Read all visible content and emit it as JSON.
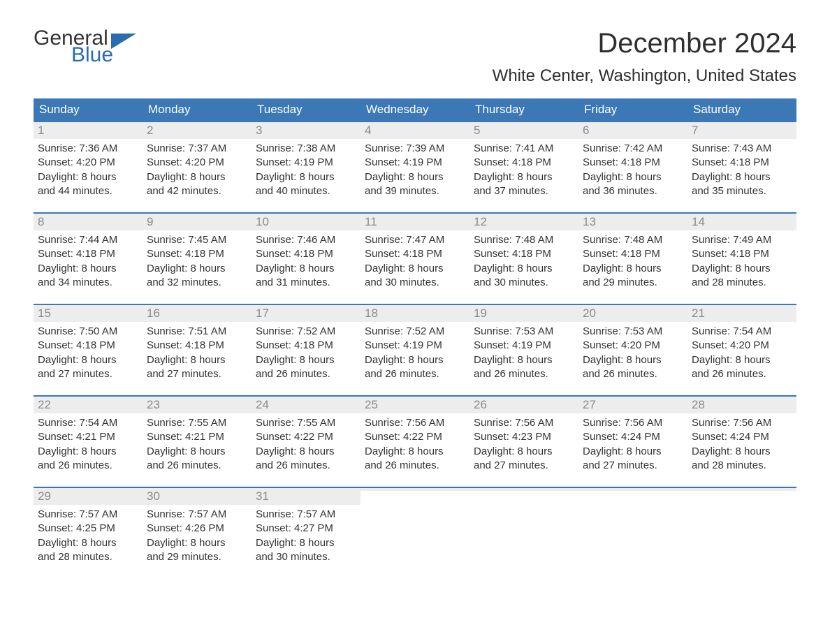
{
  "logo": {
    "word1": "General",
    "word2": "Blue",
    "flag_color": "#2a6cb0",
    "text_color_dark": "#333333",
    "text_color_blue": "#2a6cb0"
  },
  "title": "December 2024",
  "location": "White Center, Washington, United States",
  "colors": {
    "header_bg": "#3b78b5",
    "header_text": "#ffffff",
    "week_top_border": "#3b78b5",
    "daynum_bg": "#ededed",
    "daynum_text": "#8a8a8a",
    "body_text": "#333333",
    "background": "#ffffff"
  },
  "fonts": {
    "title_pt": 40,
    "location_pt": 24,
    "header_pt": 17,
    "daynum_pt": 17,
    "detail_pt": 15
  },
  "day_names": [
    "Sunday",
    "Monday",
    "Tuesday",
    "Wednesday",
    "Thursday",
    "Friday",
    "Saturday"
  ],
  "weeks": [
    [
      {
        "n": "1",
        "sunrise": "Sunrise: 7:36 AM",
        "sunset": "Sunset: 4:20 PM",
        "day1": "Daylight: 8 hours",
        "day2": "and 44 minutes."
      },
      {
        "n": "2",
        "sunrise": "Sunrise: 7:37 AM",
        "sunset": "Sunset: 4:20 PM",
        "day1": "Daylight: 8 hours",
        "day2": "and 42 minutes."
      },
      {
        "n": "3",
        "sunrise": "Sunrise: 7:38 AM",
        "sunset": "Sunset: 4:19 PM",
        "day1": "Daylight: 8 hours",
        "day2": "and 40 minutes."
      },
      {
        "n": "4",
        "sunrise": "Sunrise: 7:39 AM",
        "sunset": "Sunset: 4:19 PM",
        "day1": "Daylight: 8 hours",
        "day2": "and 39 minutes."
      },
      {
        "n": "5",
        "sunrise": "Sunrise: 7:41 AM",
        "sunset": "Sunset: 4:18 PM",
        "day1": "Daylight: 8 hours",
        "day2": "and 37 minutes."
      },
      {
        "n": "6",
        "sunrise": "Sunrise: 7:42 AM",
        "sunset": "Sunset: 4:18 PM",
        "day1": "Daylight: 8 hours",
        "day2": "and 36 minutes."
      },
      {
        "n": "7",
        "sunrise": "Sunrise: 7:43 AM",
        "sunset": "Sunset: 4:18 PM",
        "day1": "Daylight: 8 hours",
        "day2": "and 35 minutes."
      }
    ],
    [
      {
        "n": "8",
        "sunrise": "Sunrise: 7:44 AM",
        "sunset": "Sunset: 4:18 PM",
        "day1": "Daylight: 8 hours",
        "day2": "and 34 minutes."
      },
      {
        "n": "9",
        "sunrise": "Sunrise: 7:45 AM",
        "sunset": "Sunset: 4:18 PM",
        "day1": "Daylight: 8 hours",
        "day2": "and 32 minutes."
      },
      {
        "n": "10",
        "sunrise": "Sunrise: 7:46 AM",
        "sunset": "Sunset: 4:18 PM",
        "day1": "Daylight: 8 hours",
        "day2": "and 31 minutes."
      },
      {
        "n": "11",
        "sunrise": "Sunrise: 7:47 AM",
        "sunset": "Sunset: 4:18 PM",
        "day1": "Daylight: 8 hours",
        "day2": "and 30 minutes."
      },
      {
        "n": "12",
        "sunrise": "Sunrise: 7:48 AM",
        "sunset": "Sunset: 4:18 PM",
        "day1": "Daylight: 8 hours",
        "day2": "and 30 minutes."
      },
      {
        "n": "13",
        "sunrise": "Sunrise: 7:48 AM",
        "sunset": "Sunset: 4:18 PM",
        "day1": "Daylight: 8 hours",
        "day2": "and 29 minutes."
      },
      {
        "n": "14",
        "sunrise": "Sunrise: 7:49 AM",
        "sunset": "Sunset: 4:18 PM",
        "day1": "Daylight: 8 hours",
        "day2": "and 28 minutes."
      }
    ],
    [
      {
        "n": "15",
        "sunrise": "Sunrise: 7:50 AM",
        "sunset": "Sunset: 4:18 PM",
        "day1": "Daylight: 8 hours",
        "day2": "and 27 minutes."
      },
      {
        "n": "16",
        "sunrise": "Sunrise: 7:51 AM",
        "sunset": "Sunset: 4:18 PM",
        "day1": "Daylight: 8 hours",
        "day2": "and 27 minutes."
      },
      {
        "n": "17",
        "sunrise": "Sunrise: 7:52 AM",
        "sunset": "Sunset: 4:18 PM",
        "day1": "Daylight: 8 hours",
        "day2": "and 26 minutes."
      },
      {
        "n": "18",
        "sunrise": "Sunrise: 7:52 AM",
        "sunset": "Sunset: 4:19 PM",
        "day1": "Daylight: 8 hours",
        "day2": "and 26 minutes."
      },
      {
        "n": "19",
        "sunrise": "Sunrise: 7:53 AM",
        "sunset": "Sunset: 4:19 PM",
        "day1": "Daylight: 8 hours",
        "day2": "and 26 minutes."
      },
      {
        "n": "20",
        "sunrise": "Sunrise: 7:53 AM",
        "sunset": "Sunset: 4:20 PM",
        "day1": "Daylight: 8 hours",
        "day2": "and 26 minutes."
      },
      {
        "n": "21",
        "sunrise": "Sunrise: 7:54 AM",
        "sunset": "Sunset: 4:20 PM",
        "day1": "Daylight: 8 hours",
        "day2": "and 26 minutes."
      }
    ],
    [
      {
        "n": "22",
        "sunrise": "Sunrise: 7:54 AM",
        "sunset": "Sunset: 4:21 PM",
        "day1": "Daylight: 8 hours",
        "day2": "and 26 minutes."
      },
      {
        "n": "23",
        "sunrise": "Sunrise: 7:55 AM",
        "sunset": "Sunset: 4:21 PM",
        "day1": "Daylight: 8 hours",
        "day2": "and 26 minutes."
      },
      {
        "n": "24",
        "sunrise": "Sunrise: 7:55 AM",
        "sunset": "Sunset: 4:22 PM",
        "day1": "Daylight: 8 hours",
        "day2": "and 26 minutes."
      },
      {
        "n": "25",
        "sunrise": "Sunrise: 7:56 AM",
        "sunset": "Sunset: 4:22 PM",
        "day1": "Daylight: 8 hours",
        "day2": "and 26 minutes."
      },
      {
        "n": "26",
        "sunrise": "Sunrise: 7:56 AM",
        "sunset": "Sunset: 4:23 PM",
        "day1": "Daylight: 8 hours",
        "day2": "and 27 minutes."
      },
      {
        "n": "27",
        "sunrise": "Sunrise: 7:56 AM",
        "sunset": "Sunset: 4:24 PM",
        "day1": "Daylight: 8 hours",
        "day2": "and 27 minutes."
      },
      {
        "n": "28",
        "sunrise": "Sunrise: 7:56 AM",
        "sunset": "Sunset: 4:24 PM",
        "day1": "Daylight: 8 hours",
        "day2": "and 28 minutes."
      }
    ],
    [
      {
        "n": "29",
        "sunrise": "Sunrise: 7:57 AM",
        "sunset": "Sunset: 4:25 PM",
        "day1": "Daylight: 8 hours",
        "day2": "and 28 minutes."
      },
      {
        "n": "30",
        "sunrise": "Sunrise: 7:57 AM",
        "sunset": "Sunset: 4:26 PM",
        "day1": "Daylight: 8 hours",
        "day2": "and 29 minutes."
      },
      {
        "n": "31",
        "sunrise": "Sunrise: 7:57 AM",
        "sunset": "Sunset: 4:27 PM",
        "day1": "Daylight: 8 hours",
        "day2": "and 30 minutes."
      },
      null,
      null,
      null,
      null
    ]
  ]
}
